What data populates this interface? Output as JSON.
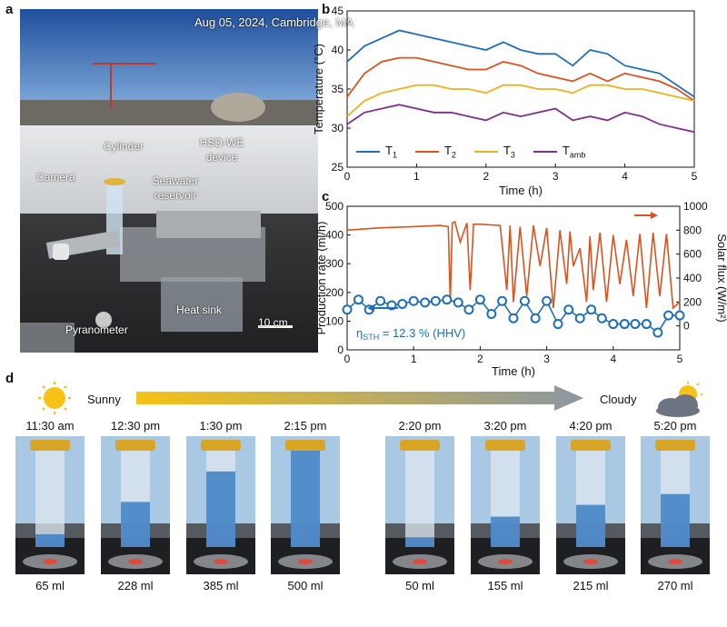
{
  "panels": {
    "a": "a",
    "b": "b",
    "c": "c",
    "d": "d"
  },
  "photo_a": {
    "date_location": "Aug 05, 2024, Cambridge, MA",
    "labels": {
      "cylinder": "Cylinder",
      "hsd_we_1": "HSD-WE",
      "hsd_we_2": "device",
      "camera": "Camera",
      "seawater_1": "Seawater",
      "seawater_2": "reservoir",
      "heat_sink": "Heat sink",
      "pyranometer": "Pyranometer",
      "scale_bar": "10 cm"
    }
  },
  "chart_data": [
    {
      "type": "line",
      "panel": "b",
      "xlabel": "Time (h)",
      "ylabel": "Temperature (°C)",
      "xlim": [
        0,
        5
      ],
      "ylim": [
        25,
        45
      ],
      "xticks": [
        "0",
        "1",
        "2",
        "3",
        "4",
        "5"
      ],
      "yticks": [
        "25",
        "30",
        "35",
        "40",
        "45"
      ],
      "legend_position": "bottom",
      "series": [
        {
          "name": "T",
          "sub": "1",
          "color": "#1f6fb8",
          "x": [
            0,
            0.25,
            0.5,
            0.75,
            1,
            1.25,
            1.5,
            1.75,
            2,
            2.25,
            2.5,
            2.75,
            3,
            3.25,
            3.5,
            3.75,
            4,
            4.25,
            4.5,
            4.75,
            5
          ],
          "y": [
            38.5,
            40.5,
            41.5,
            42.5,
            42,
            41.5,
            41,
            40.5,
            40,
            41,
            40,
            39.5,
            39.5,
            38,
            40,
            39.5,
            38,
            37.5,
            37,
            35.5,
            34
          ]
        },
        {
          "name": "T",
          "sub": "2",
          "color": "#d9531e",
          "x": [
            0,
            0.25,
            0.5,
            0.75,
            1,
            1.25,
            1.5,
            1.75,
            2,
            2.25,
            2.5,
            2.75,
            3,
            3.25,
            3.5,
            3.75,
            4,
            4.25,
            4.5,
            4.75,
            5
          ],
          "y": [
            34,
            37,
            38.5,
            39,
            39,
            38.5,
            38,
            37.5,
            37.5,
            38.5,
            38,
            37,
            36.5,
            36,
            37,
            36,
            37,
            36.5,
            36,
            35,
            33.5
          ]
        },
        {
          "name": "T",
          "sub": "3",
          "color": "#edb120",
          "x": [
            0,
            0.25,
            0.5,
            0.75,
            1,
            1.25,
            1.5,
            1.75,
            2,
            2.25,
            2.5,
            2.75,
            3,
            3.25,
            3.5,
            3.75,
            4,
            4.25,
            4.5,
            4.75,
            5
          ],
          "y": [
            31.5,
            33.5,
            34.5,
            35,
            35.5,
            35.5,
            35,
            35,
            34.5,
            35.5,
            35.5,
            35,
            35,
            34.5,
            35.5,
            35.5,
            35,
            35,
            34.5,
            34,
            33.5
          ]
        },
        {
          "name": "T",
          "sub": "amb",
          "color": "#7e2f8e",
          "x": [
            0,
            0.25,
            0.5,
            0.75,
            1,
            1.25,
            1.5,
            1.75,
            2,
            2.25,
            2.5,
            2.75,
            3,
            3.25,
            3.5,
            3.75,
            4,
            4.25,
            4.5,
            4.75,
            5
          ],
          "y": [
            30.5,
            32,
            32.5,
            33,
            32.5,
            32,
            32,
            31.5,
            31,
            32,
            31.5,
            32,
            32.5,
            31,
            31.5,
            31,
            32,
            31.5,
            30.5,
            30,
            29.5
          ]
        }
      ]
    },
    {
      "type": "line",
      "panel": "c",
      "xlabel": "Time (h)",
      "ylabel": "Production rate (ml/h)",
      "y2label": "Solar flux (W/m²)",
      "xlim": [
        0,
        5
      ],
      "ylim": [
        0,
        500
      ],
      "y2lim": [
        -200,
        1000
      ],
      "xticks": [
        "0",
        "1",
        "2",
        "3",
        "4",
        "5"
      ],
      "yticks": [
        "0",
        "100",
        "200",
        "300",
        "400",
        "500"
      ],
      "y2ticks": [
        "0",
        "200",
        "400",
        "600",
        "800",
        "1000"
      ],
      "annotation": {
        "symbol": "η",
        "sub": "STH",
        "text": " = 12.3 % (HHV)"
      },
      "series": [
        {
          "name": "Solar flux",
          "axis": "right",
          "color": "#d9531e",
          "x": [
            0,
            0.5,
            1,
            1.4,
            1.52,
            1.55,
            1.58,
            1.62,
            1.7,
            1.8,
            1.85,
            1.9,
            2.0,
            2.3,
            2.4,
            2.45,
            2.5,
            2.6,
            2.7,
            2.8,
            2.9,
            3.0,
            3.1,
            3.2,
            3.3,
            3.35,
            3.4,
            3.5,
            3.6,
            3.65,
            3.7,
            3.8,
            3.9,
            4.0,
            4.1,
            4.2,
            4.3,
            4.4,
            4.5,
            4.6,
            4.7,
            4.8,
            4.9,
            5.0
          ],
          "y": [
            800,
            820,
            830,
            840,
            830,
            200,
            860,
            870,
            700,
            860,
            300,
            850,
            850,
            840,
            300,
            840,
            200,
            830,
            250,
            840,
            500,
            820,
            150,
            800,
            350,
            790,
            500,
            650,
            200,
            750,
            300,
            780,
            200,
            760,
            350,
            720,
            250,
            770,
            150,
            780,
            250,
            770,
            150,
            200
          ]
        },
        {
          "name": "Production rate",
          "axis": "left",
          "color": "#1f6fb8",
          "x": [
            0,
            0.17,
            0.33,
            0.5,
            0.67,
            0.83,
            1.0,
            1.17,
            1.33,
            1.5,
            1.67,
            1.83,
            2.0,
            2.17,
            2.33,
            2.5,
            2.67,
            2.83,
            3.0,
            3.17,
            3.33,
            3.5,
            3.67,
            3.83,
            4.0,
            4.17,
            4.33,
            4.5,
            4.67,
            4.83,
            5.0
          ],
          "y": [
            140,
            175,
            140,
            170,
            155,
            160,
            170,
            165,
            170,
            175,
            165,
            140,
            175,
            125,
            170,
            110,
            170,
            110,
            170,
            90,
            140,
            110,
            140,
            110,
            90,
            90,
            90,
            90,
            60,
            120,
            120
          ]
        }
      ]
    }
  ],
  "row_d": {
    "sunny": "Sunny",
    "cloudy": "Cloudy",
    "items": [
      {
        "time": "11:30 am",
        "volume": "65 ml",
        "level": 0.13
      },
      {
        "time": "12:30 pm",
        "volume": "228 ml",
        "level": 0.46
      },
      {
        "time": "1:30 pm",
        "volume": "385 ml",
        "level": 0.77
      },
      {
        "time": "2:15 pm",
        "volume": "500 ml",
        "level": 1.0
      },
      {
        "time": "2:20 pm",
        "volume": "50 ml",
        "level": 0.1
      },
      {
        "time": "3:20 pm",
        "volume": "155 ml",
        "level": 0.31
      },
      {
        "time": "4:20 pm",
        "volume": "215 ml",
        "level": 0.43
      },
      {
        "time": "5:20 pm",
        "volume": "270 ml",
        "level": 0.54
      }
    ]
  },
  "colors": {
    "blue": "#1f6fb8",
    "orange": "#d9531e",
    "yellow": "#edb120",
    "purple": "#7e2f8e",
    "sun": "#f6c216"
  }
}
